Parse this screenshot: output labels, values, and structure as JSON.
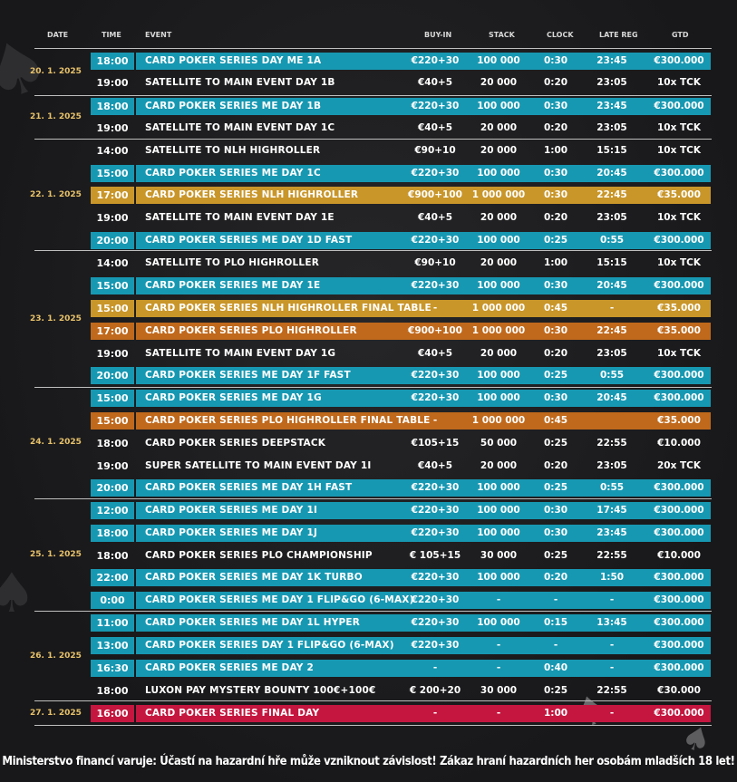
{
  "headers": {
    "date": "DATE",
    "time": "TIME",
    "event": "EVENT",
    "buyin": "BUY-IN",
    "stack": "STACK",
    "clock": "CLOCK",
    "late_reg": "LATE REG",
    "gtd": "GTD"
  },
  "days": [
    {
      "date": "20. 1. 2025"
    },
    {
      "date": "21. 1. 2025"
    },
    {
      "date": "22. 1. 2025"
    },
    {
      "date": "23. 1. 2025"
    },
    {
      "date": "24. 1. 2025"
    },
    {
      "date": "25. 1. 2025"
    },
    {
      "date": "26. 1. 2025"
    },
    {
      "date": "27. 1. 2025"
    }
  ],
  "events": [
    {
      "time": "18:00",
      "event": "CARD POKER SERIES  DAY ME 1A",
      "buyin": "€220+30",
      "stack": "100 000",
      "clock": "0:30",
      "late_reg": "23:45",
      "gtd": "€300.000",
      "highlight": "blue"
    },
    {
      "time": "19:00",
      "event": "SATELLITE TO MAIN EVENT DAY 1B",
      "buyin": "€40+5",
      "stack": "20 000",
      "clock": "0:20",
      "late_reg": "23:05",
      "gtd": "10x TCK",
      "highlight": "none"
    },
    {
      "time": "18:00",
      "event": "CARD POKER SERIES ME DAY 1B",
      "buyin": "€220+30",
      "stack": "100 000",
      "clock": "0:30",
      "late_reg": "23:45",
      "gtd": "€300.000",
      "highlight": "blue"
    },
    {
      "time": "19:00",
      "event": "SATELLITE TO MAIN EVENT DAY 1C",
      "buyin": "€40+5",
      "stack": "20 000",
      "clock": "0:20",
      "late_reg": "23:05",
      "gtd": "10x TCK",
      "highlight": "none"
    },
    {
      "time": "14:00",
      "event": "SATELLITE TO  NLH HIGHROLLER",
      "buyin": "€90+10",
      "stack": "20 000",
      "clock": "1:00",
      "late_reg": "15:15",
      "gtd": "10x TCK",
      "highlight": "none"
    },
    {
      "time": "15:00",
      "event": "CARD POKER SERIES ME DAY 1C",
      "buyin": "€220+30",
      "stack": "100 000",
      "clock": "0:30",
      "late_reg": "20:45",
      "gtd": "€300.000",
      "highlight": "blue"
    },
    {
      "time": "17:00",
      "event": "CARD POKER SERIES NLH HIGHROLLER",
      "buyin": "€900+100",
      "stack": "1 000 000",
      "clock": "0:30",
      "late_reg": "22:45",
      "gtd": "€35.000",
      "highlight": "gold"
    },
    {
      "time": "19:00",
      "event": "SATELLITE TO MAIN EVENT DAY 1E",
      "buyin": "€40+5",
      "stack": "20 000",
      "clock": "0:20",
      "late_reg": "23:05",
      "gtd": "10x TCK",
      "highlight": "none"
    },
    {
      "time": "20:00",
      "event": "CARD POKER SERIES ME DAY 1D FAST",
      "buyin": "€220+30",
      "stack": "100 000",
      "clock": "0:25",
      "late_reg": "0:55",
      "gtd": "€300.000",
      "highlight": "blue"
    },
    {
      "time": "14:00",
      "event": "SATELLITE TO PLO HIGHROLLER",
      "buyin": "€90+10",
      "stack": "20 000",
      "clock": "1:00",
      "late_reg": "15:15",
      "gtd": "10x TCK",
      "highlight": "none"
    },
    {
      "time": "15:00",
      "event": "CARD POKER SERIES ME DAY 1E",
      "buyin": "€220+30",
      "stack": "100 000",
      "clock": "0:30",
      "late_reg": "20:45",
      "gtd": "€300.000",
      "highlight": "blue"
    },
    {
      "time": "15:00",
      "event": "CARD POKER SERIES NLH HIGHROLLER FINAL TABLE",
      "buyin": "-",
      "stack": "1 000 000",
      "clock": "0:45",
      "late_reg": "-",
      "gtd": "€35.000",
      "highlight": "gold"
    },
    {
      "time": "17:00",
      "event": "CARD POKER SERIES PLO HIGHROLLER",
      "buyin": "€900+100",
      "stack": "1 000 000",
      "clock": "0:30",
      "late_reg": "22:45",
      "gtd": "€35.000",
      "highlight": "orange"
    },
    {
      "time": "19:00",
      "event": "SATELLITE TO MAIN EVENT DAY 1G",
      "buyin": "€40+5",
      "stack": "20 000",
      "clock": "0:20",
      "late_reg": "23:05",
      "gtd": "10x TCK",
      "highlight": "none"
    },
    {
      "time": "20:00",
      "event": "CARD POKER SERIES ME DAY 1F FAST",
      "buyin": "€220+30",
      "stack": "100 000",
      "clock": "0:25",
      "late_reg": "0:55",
      "gtd": "€300.000",
      "highlight": "blue"
    },
    {
      "time": "15:00",
      "event": "CARD POKER SERIES ME DAY 1G",
      "buyin": "€220+30",
      "stack": "100 000",
      "clock": "0:30",
      "late_reg": "20:45",
      "gtd": "€300.000",
      "highlight": "blue"
    },
    {
      "time": "15:00",
      "event": "CARD POKER SERIES PLO HIGHROLLER FINAL TABLE",
      "buyin": "-",
      "stack": "1 000 000",
      "clock": "0:45",
      "late_reg": "",
      "gtd": "€35.000",
      "highlight": "orange"
    },
    {
      "time": "18:00",
      "event": "CARD POKER SERIES DEEPSTACK",
      "buyin": "€105+15",
      "stack": "50 000",
      "clock": "0:25",
      "late_reg": "22:55",
      "gtd": "€10.000",
      "highlight": "none"
    },
    {
      "time": "19:00",
      "event": "SUPER SATELLITE TO MAIN EVENT DAY 1I",
      "buyin": "€40+5",
      "stack": "20 000",
      "clock": "0:20",
      "late_reg": "23:05",
      "gtd": "20x TCK",
      "highlight": "none"
    },
    {
      "time": "20:00",
      "event": "CARD POKER SERIES ME DAY 1H FAST",
      "buyin": "€220+30",
      "stack": "100 000",
      "clock": "0:25",
      "late_reg": "0:55",
      "gtd": "€300.000",
      "highlight": "blue"
    },
    {
      "time": "12:00",
      "event": "CARD POKER SERIES ME DAY 1I",
      "buyin": "€220+30",
      "stack": "100 000",
      "clock": "0:30",
      "late_reg": "17:45",
      "gtd": "€300.000",
      "highlight": "blue"
    },
    {
      "time": "18:00",
      "event": "CARD POKER SERIES ME DAY 1J",
      "buyin": "€220+30",
      "stack": "100 000",
      "clock": "0:30",
      "late_reg": "23:45",
      "gtd": "€300.000",
      "highlight": "blue"
    },
    {
      "time": "18:00",
      "event": "CARD POKER SERIES PLO CHAMPIONSHIP",
      "buyin": "€ 105+15",
      "stack": "30 000",
      "clock": "0:25",
      "late_reg": "22:55",
      "gtd": "€10.000",
      "highlight": "none"
    },
    {
      "time": "22:00",
      "event": "CARD POKER SERIES ME DAY 1K TURBO",
      "buyin": "€220+30",
      "stack": "100 000",
      "clock": "0:20",
      "late_reg": "1:50",
      "gtd": "€300.000",
      "highlight": "blue"
    },
    {
      "time": "0:00",
      "event": "CARD POKER SERIES ME DAY 1 FLIP&GO (6-MAX)",
      "buyin": "€220+30",
      "stack": "-",
      "clock": "-",
      "late_reg": "-",
      "gtd": "€300.000",
      "highlight": "blue"
    },
    {
      "time": "11:00",
      "event": "CARD POKER SERIES ME DAY 1L HYPER",
      "buyin": "€220+30",
      "stack": "100 000",
      "clock": "0:15",
      "late_reg": "13:45",
      "gtd": "€300.000",
      "highlight": "blue"
    },
    {
      "time": "13:00",
      "event": "CARD POKER SERIES DAY 1 FLIP&GO (6-MAX)",
      "buyin": "€220+30",
      "stack": "-",
      "clock": "-",
      "late_reg": "-",
      "gtd": "€300.000",
      "highlight": "blue"
    },
    {
      "time": "16:30",
      "event": "CARD POKER SERIES ME DAY 2",
      "buyin": "-",
      "stack": "-",
      "clock": "0:40",
      "late_reg": "-",
      "gtd": "€300.000",
      "highlight": "blue"
    },
    {
      "time": "18:00",
      "event": "LUXON PAY MYSTERY BOUNTY 100€+100€",
      "buyin": "€ 200+20",
      "stack": "30 000",
      "clock": "0:25",
      "late_reg": "22:55",
      "gtd": "€30.000",
      "highlight": "none"
    },
    {
      "time": "16:00",
      "event": "CARD POKER SERIES FINAL DAY",
      "buyin": "-",
      "stack": "-",
      "clock": "1:00",
      "late_reg": "-",
      "gtd": "€300.000",
      "highlight": "red"
    }
  ],
  "footer": {
    "warning": "Ministerstvo financí varuje: Účastí na hazardní hře může vzniknout závislost! Zákaz hraní hazardních her osobám mladších 18 let!"
  },
  "icons": [
    "spade-icon"
  ]
}
